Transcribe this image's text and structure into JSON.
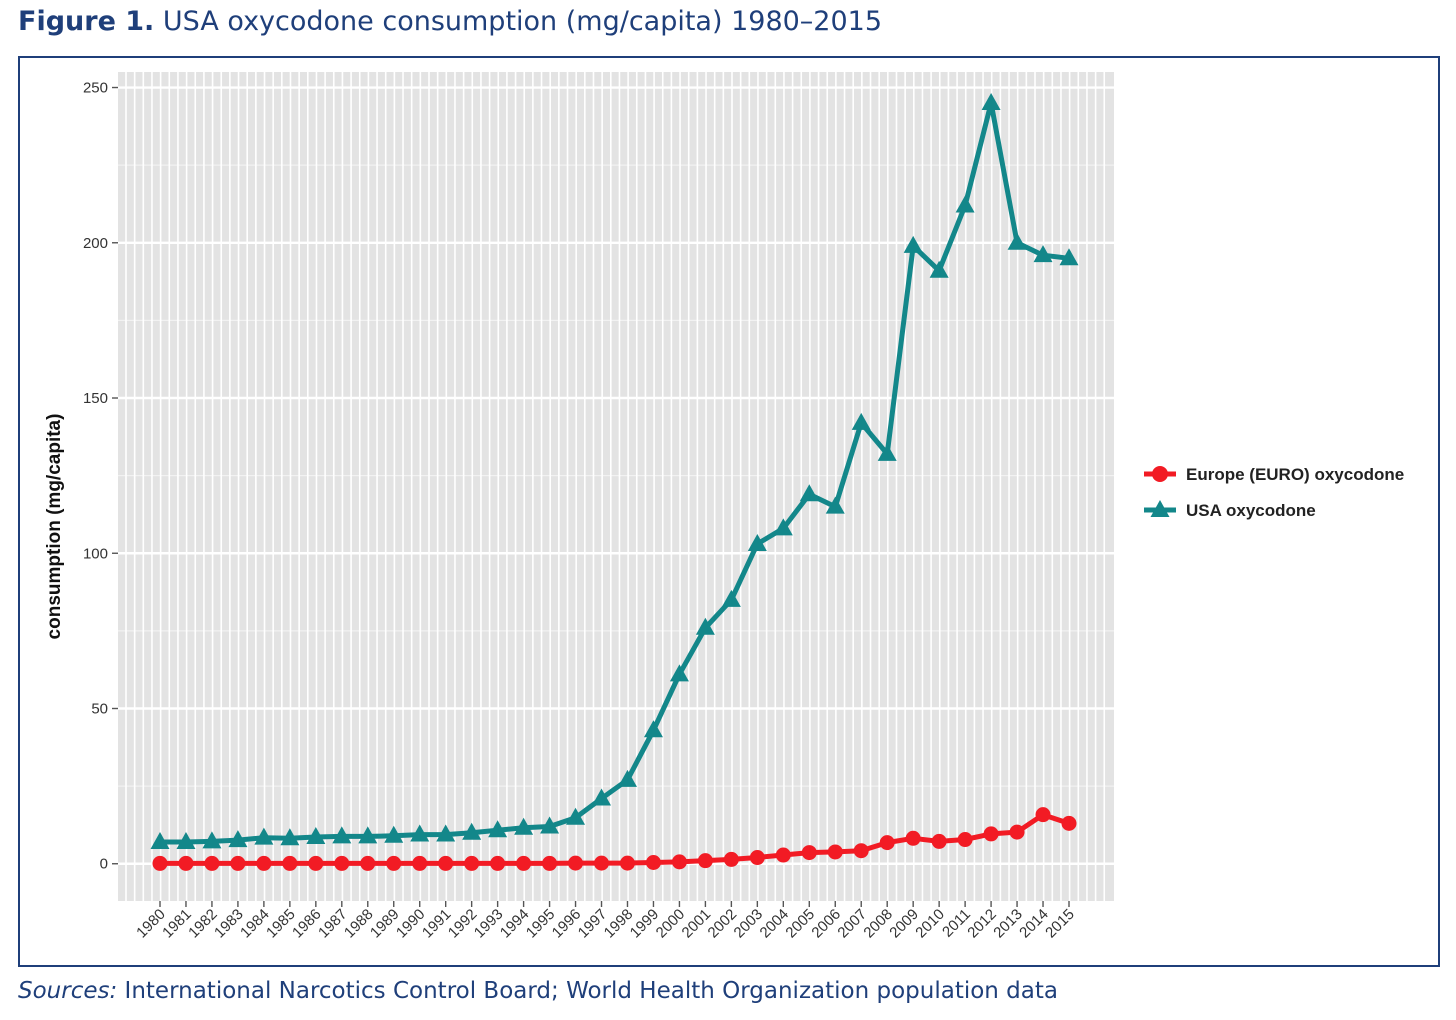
{
  "figure": {
    "label": "Figure 1.",
    "title": "USA oxycodone consumption (mg/capita) 1980–2015"
  },
  "sources": {
    "label": "Sources:",
    "text": "International Narcotics Control Board; World Health Organization population data"
  },
  "chart_data": {
    "type": "line",
    "title": "",
    "xlabel": "",
    "ylabel": "consumption (mg/capita)",
    "ylim": [
      -12,
      255
    ],
    "yticks": [
      0,
      50,
      100,
      150,
      200,
      250
    ],
    "grid": true,
    "legend_position": "right",
    "x": [
      "1980",
      "1981",
      "1982",
      "1983",
      "1984",
      "1985",
      "1986",
      "1987",
      "1988",
      "1989",
      "1990",
      "1991",
      "1992",
      "1993",
      "1994",
      "1995",
      "1996",
      "1997",
      "1998",
      "1999",
      "2000",
      "2001",
      "2002",
      "2003",
      "2004",
      "2005",
      "2006",
      "2007",
      "2008",
      "2009",
      "2010",
      "2011",
      "2012",
      "2013",
      "2014",
      "2015"
    ],
    "series": [
      {
        "name": "Europe (EURO) oxycodone",
        "color": "#f21b24",
        "marker": "circle",
        "values": [
          0.1,
          0.1,
          0.1,
          0.1,
          0.1,
          0.1,
          0.1,
          0.1,
          0.1,
          0.1,
          0.1,
          0.1,
          0.1,
          0.1,
          0.1,
          0.1,
          0.2,
          0.2,
          0.2,
          0.4,
          0.6,
          1.0,
          1.4,
          2.0,
          2.8,
          3.6,
          3.8,
          4.2,
          6.8,
          8.2,
          7.2,
          7.8,
          9.6,
          10.2,
          15.8,
          13.0
        ]
      },
      {
        "name": "USA oxycodone",
        "color": "#13878a",
        "marker": "triangle",
        "values": [
          7.0,
          7.0,
          7.2,
          7.6,
          8.4,
          8.2,
          8.6,
          8.8,
          8.8,
          9.0,
          9.4,
          9.4,
          10.0,
          10.8,
          11.6,
          12.0,
          14.8,
          21.0,
          27.0,
          43.0,
          61.0,
          76.0,
          85.0,
          103.0,
          108.0,
          119.0,
          115.0,
          142.0,
          132.0,
          199.0,
          191.0,
          212.0,
          245.0,
          200.0,
          196.0,
          195.0
        ]
      }
    ]
  }
}
